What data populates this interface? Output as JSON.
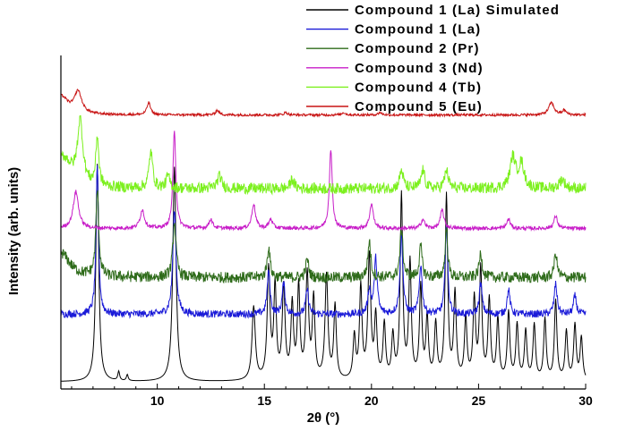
{
  "chart_data": {
    "type": "line",
    "title": "",
    "xlabel": "2θ (°)",
    "ylabel": "Intensity (arb. units)",
    "xlim": [
      5.5,
      30
    ],
    "ylim": [
      0,
      100
    ],
    "y_tick_labels_shown": false,
    "x_ticks": [
      10,
      15,
      20,
      25,
      30
    ],
    "x_tick_labels": [
      "10",
      "15",
      "20",
      "25",
      "30"
    ],
    "legend_placement": "top-right",
    "series": [
      {
        "name": "Compound 1 (La) Simulated",
        "color": "#000000",
        "baseline": 0,
        "noise": 0,
        "peaks": [
          [
            7.2,
            71,
            0.08
          ],
          [
            8.2,
            3,
            0.05
          ],
          [
            8.6,
            2,
            0.05
          ],
          [
            10.8,
            70,
            0.09
          ],
          [
            14.5,
            24,
            0.09
          ],
          [
            15.2,
            36,
            0.08
          ],
          [
            15.5,
            30,
            0.07
          ],
          [
            15.9,
            30,
            0.08
          ],
          [
            16.3,
            24,
            0.07
          ],
          [
            16.6,
            30,
            0.07
          ],
          [
            17.0,
            34,
            0.08
          ],
          [
            17.3,
            26,
            0.07
          ],
          [
            17.9,
            34,
            0.08
          ],
          [
            18.3,
            24,
            0.07
          ],
          [
            19.2,
            14,
            0.07
          ],
          [
            19.5,
            30,
            0.07
          ],
          [
            19.9,
            40,
            0.08
          ],
          [
            20.2,
            20,
            0.07
          ],
          [
            20.6,
            18,
            0.07
          ],
          [
            21.0,
            14,
            0.07
          ],
          [
            21.4,
            60,
            0.07
          ],
          [
            21.8,
            38,
            0.07
          ],
          [
            22.3,
            30,
            0.07
          ],
          [
            22.6,
            20,
            0.07
          ],
          [
            23.0,
            18,
            0.07
          ],
          [
            23.5,
            60,
            0.07
          ],
          [
            23.9,
            28,
            0.07
          ],
          [
            24.4,
            20,
            0.07
          ],
          [
            24.8,
            26,
            0.07
          ],
          [
            25.1,
            36,
            0.07
          ],
          [
            25.5,
            26,
            0.07
          ],
          [
            25.9,
            20,
            0.07
          ],
          [
            26.4,
            22,
            0.07
          ],
          [
            26.8,
            18,
            0.07
          ],
          [
            27.2,
            16,
            0.07
          ],
          [
            27.6,
            18,
            0.07
          ],
          [
            28.1,
            20,
            0.07
          ],
          [
            28.6,
            26,
            0.07
          ],
          [
            29.1,
            16,
            0.07
          ],
          [
            29.5,
            18,
            0.07
          ],
          [
            29.8,
            14,
            0.07
          ]
        ]
      },
      {
        "name": "Compound 1 (La)",
        "color": "#1a1ad8",
        "baseline": 22,
        "noise": 1.2,
        "peaks": [
          [
            7.2,
            48,
            0.07
          ],
          [
            10.8,
            34,
            0.09
          ],
          [
            15.2,
            14,
            0.08
          ],
          [
            15.9,
            10,
            0.08
          ],
          [
            17.0,
            8,
            0.08
          ],
          [
            19.9,
            8,
            0.08
          ],
          [
            20.2,
            18,
            0.08
          ],
          [
            21.4,
            26,
            0.08
          ],
          [
            22.3,
            16,
            0.08
          ],
          [
            23.5,
            30,
            0.07
          ],
          [
            25.1,
            10,
            0.08
          ],
          [
            26.4,
            8,
            0.08
          ],
          [
            28.6,
            10,
            0.08
          ],
          [
            29.5,
            6,
            0.08
          ]
        ]
      },
      {
        "name": "Compound 2 (Pr)",
        "color": "#2e6b1a",
        "baseline": 34,
        "noise": 1.8,
        "peaks": [
          [
            5.5,
            8,
            0.5
          ],
          [
            7.2,
            28,
            0.08
          ],
          [
            10.8,
            18,
            0.09
          ],
          [
            15.2,
            10,
            0.08
          ],
          [
            17.0,
            6,
            0.08
          ],
          [
            19.9,
            12,
            0.08
          ],
          [
            21.4,
            16,
            0.08
          ],
          [
            22.3,
            10,
            0.08
          ],
          [
            23.5,
            16,
            0.07
          ],
          [
            25.1,
            8,
            0.08
          ],
          [
            28.6,
            8,
            0.08
          ]
        ]
      },
      {
        "name": "Compound 3 (Nd)",
        "color": "#c81ec8",
        "baseline": 50,
        "noise": 0.6,
        "peaks": [
          [
            6.2,
            12,
            0.15
          ],
          [
            9.3,
            6,
            0.12
          ],
          [
            10.8,
            32,
            0.08
          ],
          [
            12.5,
            3,
            0.1
          ],
          [
            14.5,
            8,
            0.1
          ],
          [
            15.3,
            3,
            0.1
          ],
          [
            18.1,
            26,
            0.08
          ],
          [
            20.0,
            8,
            0.1
          ],
          [
            22.4,
            3,
            0.1
          ],
          [
            23.3,
            6,
            0.1
          ],
          [
            26.4,
            3,
            0.1
          ],
          [
            28.6,
            4,
            0.1
          ]
        ]
      },
      {
        "name": "Compound 4 (Tb)",
        "color": "#7cf01e",
        "baseline": 63,
        "noise": 1.8,
        "peaks": [
          [
            5.6,
            10,
            0.5
          ],
          [
            6.4,
            20,
            0.15
          ],
          [
            7.2,
            16,
            0.08
          ],
          [
            9.7,
            12,
            0.1
          ],
          [
            10.5,
            4,
            0.1
          ],
          [
            12.9,
            4,
            0.12
          ],
          [
            16.3,
            3,
            0.1
          ],
          [
            21.4,
            6,
            0.1
          ],
          [
            22.4,
            6,
            0.1
          ],
          [
            23.5,
            6,
            0.1
          ],
          [
            26.6,
            10,
            0.15
          ],
          [
            27.0,
            8,
            0.15
          ],
          [
            28.9,
            3,
            0.15
          ]
        ]
      },
      {
        "name": "Compound 5 (Eu)",
        "color": "#c81414",
        "baseline": 87,
        "noise": 0.4,
        "peaks": [
          [
            5.5,
            6,
            0.4
          ],
          [
            6.3,
            7,
            0.2
          ],
          [
            9.6,
            4,
            0.1
          ],
          [
            12.8,
            1.5,
            0.1
          ],
          [
            16.0,
            0.8,
            0.1
          ],
          [
            18.7,
            0.8,
            0.1
          ],
          [
            20.4,
            0.8,
            0.1
          ],
          [
            28.4,
            4,
            0.15
          ],
          [
            29.0,
            1.5,
            0.1
          ]
        ]
      }
    ]
  }
}
